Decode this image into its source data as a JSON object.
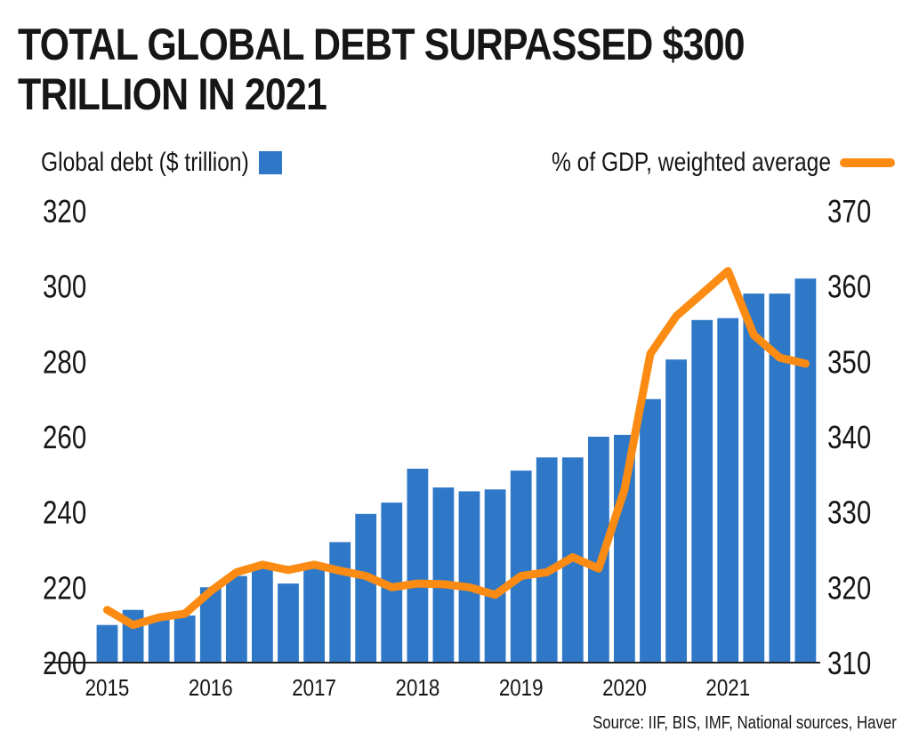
{
  "title": "TOTAL GLOBAL DEBT SURPASSED $300 TRILLION IN 2021",
  "legend": {
    "left_label": "Global debt ($ trillion)",
    "right_label": "% of GDP, weighted average"
  },
  "source": "Source: IIF, BIS, IMF, National sources, Haver",
  "colors": {
    "bar": "#2f78c8",
    "line": "#fb8b13",
    "text": "#161616"
  },
  "chart_data": {
    "type": "bar+line",
    "title": "TOTAL GLOBAL DEBT SURPASSED $300 TRILLION IN 2021",
    "x_tick_labels": [
      "2015",
      "2016",
      "2017",
      "2018",
      "2019",
      "2020",
      "2021"
    ],
    "y_left": {
      "label": "Global debt ($ trillion)",
      "lim": [
        200,
        320
      ],
      "ticks": [
        200,
        220,
        240,
        260,
        280,
        300,
        320
      ]
    },
    "y_right": {
      "label": "% of GDP, weighted average",
      "lim": [
        310,
        370
      ],
      "ticks": [
        310,
        320,
        330,
        340,
        350,
        360,
        370
      ]
    },
    "x": [
      "2015 Q1",
      "2015 Q2",
      "2015 Q3",
      "2015 Q4",
      "2016 Q1",
      "2016 Q2",
      "2016 Q3",
      "2016 Q4",
      "2017 Q1",
      "2017 Q2",
      "2017 Q3",
      "2017 Q4",
      "2018 Q1",
      "2018 Q2",
      "2018 Q3",
      "2018 Q4",
      "2019 Q1",
      "2019 Q2",
      "2019 Q3",
      "2019 Q4",
      "2020 Q1",
      "2020 Q2",
      "2020 Q3",
      "2020 Q4",
      "2021 Q1",
      "2021 Q2",
      "2021 Q3",
      "2021 Q4"
    ],
    "series": [
      {
        "name": "Global debt ($ trillion)",
        "type": "bar",
        "axis": "left",
        "values": [
          210,
          214,
          212,
          212.5,
          220,
          223,
          226,
          221,
          226,
          232,
          239.5,
          242.5,
          251.5,
          246.5,
          245.5,
          246,
          251,
          254.5,
          254.5,
          260,
          260.5,
          270,
          280.5,
          291,
          291.5,
          298,
          298,
          302
        ]
      },
      {
        "name": "% of GDP, weighted average",
        "type": "line",
        "axis": "right",
        "values": [
          317,
          315,
          316,
          316.5,
          319.5,
          322,
          323,
          322.3,
          323,
          322.2,
          321.5,
          320,
          320.5,
          320.4,
          320,
          319,
          321.5,
          322,
          324,
          322.5,
          333,
          351,
          356,
          359,
          362,
          353.5,
          350.5,
          349.7
        ]
      }
    ],
    "grid": false,
    "legend_position": "top"
  }
}
